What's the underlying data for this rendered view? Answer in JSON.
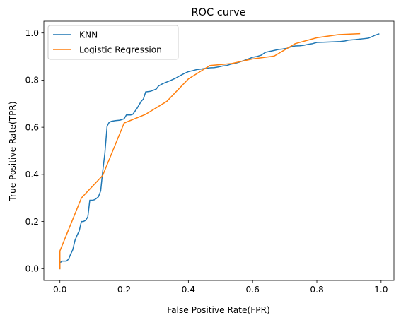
{
  "chart_data": {
    "type": "line",
    "title": "ROC curve",
    "xlabel": "False Positive Rate(FPR)",
    "ylabel": "True Positive Rate(TPR)",
    "xlim": [
      -0.05,
      1.04
    ],
    "ylim": [
      -0.05,
      1.05
    ],
    "xticks": [
      0.0,
      0.2,
      0.4,
      0.6,
      0.8,
      1.0
    ],
    "xtick_labels": [
      "0.0",
      "0.2",
      "0.4",
      "0.6",
      "0.8",
      "1.0"
    ],
    "yticks": [
      0.0,
      0.2,
      0.4,
      0.6,
      0.8,
      1.0
    ],
    "ytick_labels": [
      "0.0",
      "0.2",
      "0.4",
      "0.6",
      "0.8",
      "1.0"
    ],
    "grid": false,
    "legend_position": "top-left",
    "series": [
      {
        "name": "KNN",
        "color": "#1f77b4",
        "points": [
          [
            0.0,
            0.0
          ],
          [
            0.0,
            0.025
          ],
          [
            0.007,
            0.032
          ],
          [
            0.02,
            0.032
          ],
          [
            0.027,
            0.04
          ],
          [
            0.033,
            0.06
          ],
          [
            0.04,
            0.08
          ],
          [
            0.047,
            0.12
          ],
          [
            0.053,
            0.14
          ],
          [
            0.06,
            0.16
          ],
          [
            0.067,
            0.2
          ],
          [
            0.073,
            0.2
          ],
          [
            0.08,
            0.205
          ],
          [
            0.087,
            0.22
          ],
          [
            0.093,
            0.29
          ],
          [
            0.1,
            0.29
          ],
          [
            0.107,
            0.292
          ],
          [
            0.113,
            0.297
          ],
          [
            0.12,
            0.305
          ],
          [
            0.127,
            0.33
          ],
          [
            0.133,
            0.41
          ],
          [
            0.14,
            0.49
          ],
          [
            0.147,
            0.605
          ],
          [
            0.153,
            0.62
          ],
          [
            0.16,
            0.625
          ],
          [
            0.173,
            0.628
          ],
          [
            0.187,
            0.63
          ],
          [
            0.2,
            0.636
          ],
          [
            0.207,
            0.652
          ],
          [
            0.22,
            0.652
          ],
          [
            0.227,
            0.655
          ],
          [
            0.24,
            0.68
          ],
          [
            0.253,
            0.71
          ],
          [
            0.26,
            0.72
          ],
          [
            0.267,
            0.75
          ],
          [
            0.28,
            0.752
          ],
          [
            0.287,
            0.755
          ],
          [
            0.3,
            0.762
          ],
          [
            0.307,
            0.775
          ],
          [
            0.32,
            0.785
          ],
          [
            0.333,
            0.792
          ],
          [
            0.347,
            0.8
          ],
          [
            0.36,
            0.808
          ],
          [
            0.373,
            0.818
          ],
          [
            0.387,
            0.828
          ],
          [
            0.4,
            0.836
          ],
          [
            0.413,
            0.84
          ],
          [
            0.427,
            0.845
          ],
          [
            0.44,
            0.847
          ],
          [
            0.453,
            0.85
          ],
          [
            0.467,
            0.852
          ],
          [
            0.48,
            0.853
          ],
          [
            0.493,
            0.856
          ],
          [
            0.507,
            0.86
          ],
          [
            0.52,
            0.862
          ],
          [
            0.533,
            0.868
          ],
          [
            0.547,
            0.872
          ],
          [
            0.56,
            0.877
          ],
          [
            0.573,
            0.883
          ],
          [
            0.587,
            0.89
          ],
          [
            0.6,
            0.897
          ],
          [
            0.613,
            0.9
          ],
          [
            0.627,
            0.906
          ],
          [
            0.64,
            0.918
          ],
          [
            0.653,
            0.922
          ],
          [
            0.667,
            0.926
          ],
          [
            0.68,
            0.93
          ],
          [
            0.693,
            0.932
          ],
          [
            0.707,
            0.935
          ],
          [
            0.72,
            0.942
          ],
          [
            0.733,
            0.945
          ],
          [
            0.747,
            0.946
          ],
          [
            0.76,
            0.948
          ],
          [
            0.773,
            0.952
          ],
          [
            0.787,
            0.955
          ],
          [
            0.8,
            0.96
          ],
          [
            0.82,
            0.961
          ],
          [
            0.84,
            0.962
          ],
          [
            0.86,
            0.963
          ],
          [
            0.873,
            0.964
          ],
          [
            0.887,
            0.966
          ],
          [
            0.9,
            0.97
          ],
          [
            0.92,
            0.972
          ],
          [
            0.933,
            0.974
          ],
          [
            0.947,
            0.976
          ],
          [
            0.96,
            0.978
          ],
          [
            0.973,
            0.985
          ],
          [
            0.98,
            0.99
          ],
          [
            0.993,
            0.996
          ]
        ]
      },
      {
        "name": "Logistic Regression",
        "color": "#ff7f0e",
        "points": [
          [
            0.0,
            0.0
          ],
          [
            0.0,
            0.075
          ],
          [
            0.067,
            0.3
          ],
          [
            0.133,
            0.395
          ],
          [
            0.2,
            0.618
          ],
          [
            0.267,
            0.655
          ],
          [
            0.333,
            0.71
          ],
          [
            0.4,
            0.805
          ],
          [
            0.467,
            0.862
          ],
          [
            0.533,
            0.87
          ],
          [
            0.6,
            0.89
          ],
          [
            0.667,
            0.902
          ],
          [
            0.733,
            0.955
          ],
          [
            0.8,
            0.98
          ],
          [
            0.867,
            0.993
          ],
          [
            0.933,
            0.997
          ]
        ]
      }
    ]
  }
}
